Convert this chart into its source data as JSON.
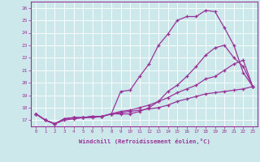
{
  "xlabel": "Windchill (Refroidissement éolien,°C)",
  "ylabel": "",
  "xlim": [
    -0.5,
    23.5
  ],
  "ylim": [
    16.5,
    26.5
  ],
  "yticks": [
    17,
    18,
    19,
    20,
    21,
    22,
    23,
    24,
    25,
    26
  ],
  "xticks": [
    0,
    1,
    2,
    3,
    4,
    5,
    6,
    7,
    8,
    9,
    10,
    11,
    12,
    13,
    14,
    15,
    16,
    17,
    18,
    19,
    20,
    21,
    22,
    23
  ],
  "bg_color": "#cce8ea",
  "line_color": "#993399",
  "series": [
    {
      "x": [
        0,
        1,
        2,
        3,
        4,
        5,
        6,
        7,
        8,
        9,
        10,
        11,
        12,
        13,
        14,
        15,
        16,
        17,
        18,
        19,
        20,
        21,
        22,
        23
      ],
      "y": [
        17.5,
        17.0,
        16.7,
        17.1,
        17.2,
        17.2,
        17.3,
        17.3,
        17.5,
        19.3,
        19.4,
        20.5,
        21.5,
        23.0,
        23.9,
        25.0,
        25.3,
        25.3,
        25.8,
        25.7,
        24.4,
        23.0,
        20.8,
        19.7
      ]
    },
    {
      "x": [
        0,
        1,
        2,
        3,
        4,
        5,
        6,
        7,
        8,
        9,
        10,
        11,
        12,
        13,
        14,
        15,
        16,
        17,
        18,
        19,
        20,
        21,
        22,
        23
      ],
      "y": [
        17.5,
        17.0,
        16.7,
        17.1,
        17.2,
        17.2,
        17.3,
        17.3,
        17.5,
        17.5,
        17.5,
        17.7,
        18.0,
        18.5,
        19.3,
        19.8,
        20.5,
        21.3,
        22.2,
        22.8,
        23.0,
        22.0,
        21.3,
        19.7
      ]
    },
    {
      "x": [
        0,
        1,
        2,
        3,
        4,
        5,
        6,
        7,
        8,
        9,
        10,
        11,
        12,
        13,
        14,
        15,
        16,
        17,
        18,
        19,
        20,
        21,
        22,
        23
      ],
      "y": [
        17.5,
        17.0,
        16.7,
        17.1,
        17.2,
        17.2,
        17.3,
        17.3,
        17.5,
        17.7,
        17.8,
        18.0,
        18.2,
        18.5,
        18.8,
        19.2,
        19.5,
        19.8,
        20.3,
        20.5,
        21.0,
        21.5,
        21.8,
        19.7
      ]
    },
    {
      "x": [
        0,
        1,
        2,
        3,
        4,
        5,
        6,
        7,
        8,
        9,
        10,
        11,
        12,
        13,
        14,
        15,
        16,
        17,
        18,
        19,
        20,
        21,
        22,
        23
      ],
      "y": [
        17.5,
        17.0,
        16.7,
        17.0,
        17.1,
        17.2,
        17.2,
        17.3,
        17.5,
        17.6,
        17.7,
        17.8,
        17.9,
        18.0,
        18.2,
        18.5,
        18.7,
        18.9,
        19.1,
        19.2,
        19.3,
        19.4,
        19.5,
        19.7
      ]
    }
  ]
}
